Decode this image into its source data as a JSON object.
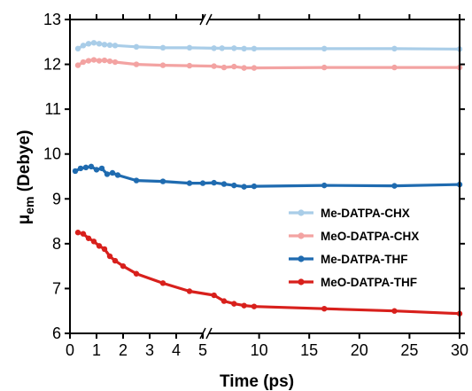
{
  "chart_data": {
    "type": "line",
    "xlabel": "Time (ps)",
    "ylabel_main": "μ",
    "ylabel_sub": "em",
    "ylabel_rest": " (Debye)",
    "ylim": [
      6,
      13
    ],
    "yticks": [
      6,
      7,
      8,
      9,
      10,
      11,
      12,
      13
    ],
    "x_break": true,
    "x_segments": [
      {
        "xlim": [
          0,
          5
        ],
        "ticks": [
          0,
          1,
          2,
          3,
          4,
          5
        ],
        "tick_labels": [
          "0",
          "1",
          "2",
          "3",
          "4",
          "5"
        ]
      },
      {
        "xlim": [
          5,
          30
        ],
        "ticks": [
          5,
          10,
          15,
          20,
          25,
          30
        ],
        "tick_labels": [
          "",
          "10",
          "15",
          "20",
          "25",
          "30"
        ]
      }
    ],
    "legend_position": "center-right",
    "series": [
      {
        "name": "Me-DATPA-CHX",
        "color": "#a9cde8",
        "x": [
          0.3,
          0.5,
          0.7,
          0.9,
          1.1,
          1.3,
          1.5,
          1.7,
          2.5,
          3.5,
          4.5,
          5.5,
          6.3,
          7.5,
          8.5,
          9.5,
          16.5,
          23.5,
          30
        ],
        "y": [
          12.35,
          12.42,
          12.46,
          12.48,
          12.46,
          12.44,
          12.43,
          12.42,
          12.39,
          12.37,
          12.37,
          12.36,
          12.36,
          12.36,
          12.35,
          12.35,
          12.35,
          12.35,
          12.34
        ]
      },
      {
        "name": "MeO-DATPA-CHX",
        "color": "#f3a3a2",
        "x": [
          0.3,
          0.5,
          0.7,
          0.9,
          1.1,
          1.3,
          1.5,
          1.7,
          2.5,
          3.5,
          4.5,
          5.5,
          6.5,
          7.5,
          8.5,
          9.5,
          16.5,
          23.5,
          30
        ],
        "y": [
          11.98,
          12.05,
          12.08,
          12.1,
          12.08,
          12.09,
          12.07,
          12.05,
          12.0,
          11.98,
          11.97,
          11.96,
          11.93,
          11.95,
          11.92,
          11.92,
          11.93,
          11.93,
          11.93
        ]
      },
      {
        "name": "Me-DATPA-THF",
        "color": "#1f6bb0",
        "x": [
          0.2,
          0.4,
          0.6,
          0.8,
          1.0,
          1.2,
          1.4,
          1.6,
          1.8,
          2.5,
          3.5,
          4.5,
          5,
          5.5,
          6.5,
          7.5,
          8.5,
          9.5,
          16.5,
          23.5,
          30
        ],
        "y": [
          9.62,
          9.68,
          9.7,
          9.72,
          9.65,
          9.68,
          9.55,
          9.58,
          9.53,
          9.41,
          9.39,
          9.35,
          9.35,
          9.36,
          9.33,
          9.3,
          9.27,
          9.28,
          9.3,
          9.29,
          9.32
        ]
      },
      {
        "name": "MeO-DATPA-THF",
        "color": "#d8201c",
        "x": [
          0.3,
          0.5,
          0.7,
          0.9,
          1.1,
          1.3,
          1.5,
          1.7,
          2.0,
          2.5,
          3.5,
          4.5,
          5.5,
          6.5,
          7.5,
          8.5,
          9.5,
          16.5,
          23.5,
          30
        ],
        "y": [
          8.25,
          8.22,
          8.12,
          8.05,
          7.95,
          7.88,
          7.72,
          7.62,
          7.5,
          7.33,
          7.12,
          6.94,
          6.85,
          6.72,
          6.66,
          6.62,
          6.6,
          6.55,
          6.5,
          6.44
        ]
      }
    ]
  }
}
